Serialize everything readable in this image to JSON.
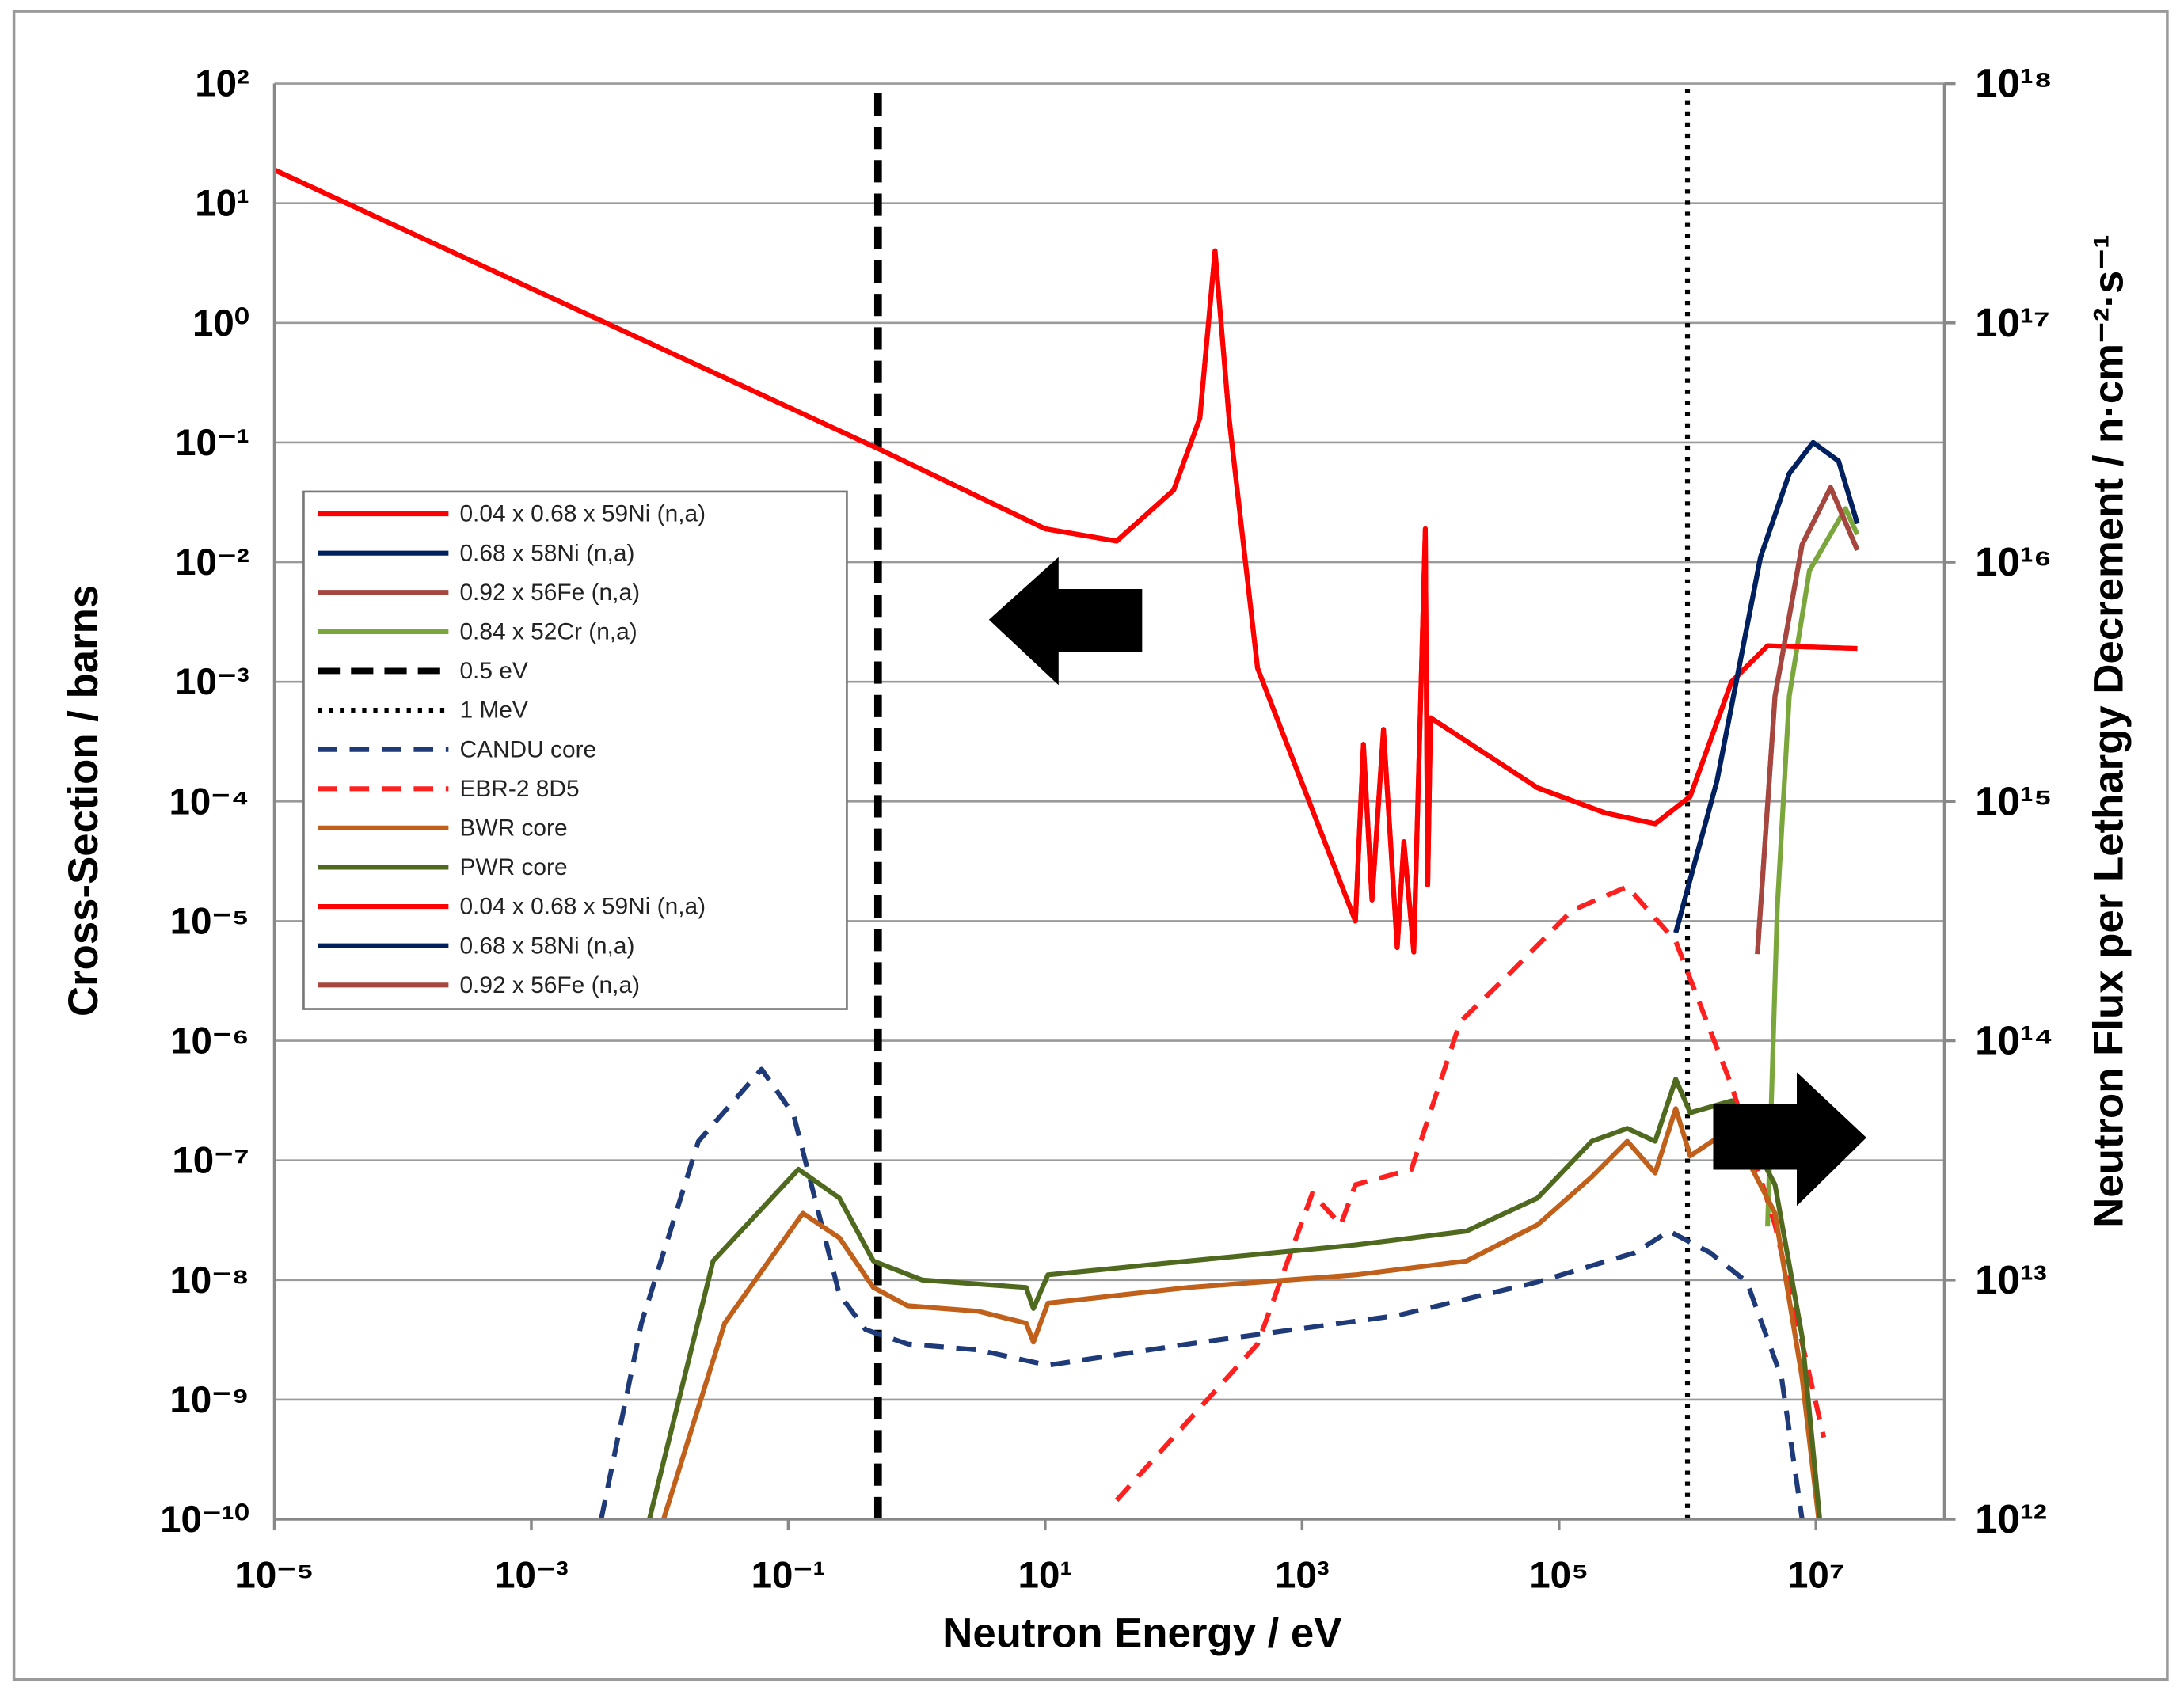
{
  "chart_data": {
    "type": "line",
    "xlabel": "Neutron Energy / eV",
    "ylabel": "Cross-Section / barns",
    "y2label": "Neutron Flux per Lethargy Decrement / n·cm⁻²·s⁻¹",
    "xscale": "log",
    "yscale": "log",
    "y2scale": "log",
    "xlim": [
      1e-05,
      100000000.0
    ],
    "ylim": [
      1e-10,
      100
    ],
    "y2lim": [
      1000000000000.0,
      1e+18
    ],
    "xticks": [
      {
        "value": 1e-05,
        "label": "10⁻⁵"
      },
      {
        "value": 0.001,
        "label": "10⁻³"
      },
      {
        "value": 0.1,
        "label": "10⁻¹"
      },
      {
        "value": 10,
        "label": "10¹"
      },
      {
        "value": 1000,
        "label": "10³"
      },
      {
        "value": 100000,
        "label": "10⁵"
      },
      {
        "value": 10000000,
        "label": "10⁷"
      }
    ],
    "yticks": [
      {
        "value": 1e-10,
        "label": "10⁻¹⁰"
      },
      {
        "value": 1e-09,
        "label": "10⁻⁹"
      },
      {
        "value": 1e-08,
        "label": "10⁻⁸"
      },
      {
        "value": 1e-07,
        "label": "10⁻⁷"
      },
      {
        "value": 1e-06,
        "label": "10⁻⁶"
      },
      {
        "value": 1e-05,
        "label": "10⁻⁵"
      },
      {
        "value": 0.0001,
        "label": "10⁻⁴"
      },
      {
        "value": 0.001,
        "label": "10⁻³"
      },
      {
        "value": 0.01,
        "label": "10⁻²"
      },
      {
        "value": 0.1,
        "label": "10⁻¹"
      },
      {
        "value": 1,
        "label": "10⁰"
      },
      {
        "value": 10,
        "label": "10¹"
      },
      {
        "value": 100,
        "label": "10²"
      }
    ],
    "y2ticks": [
      {
        "value": 1000000000000.0,
        "label": "10¹²"
      },
      {
        "value": 10000000000000.0,
        "label": "10¹³"
      },
      {
        "value": 100000000000000.0,
        "label": "10¹⁴"
      },
      {
        "value": 1000000000000000.0,
        "label": "10¹⁵"
      },
      {
        "value": 1e+16,
        "label": "10¹⁶"
      },
      {
        "value": 1e+17,
        "label": "10¹⁷"
      },
      {
        "value": 1e+18,
        "label": "10¹⁸"
      }
    ],
    "grid": true,
    "legend": "center-left",
    "series": [
      {
        "name": "0.04 x 0.68 x 59Ni (n,a)",
        "color": "#ff0000",
        "dash": "solid",
        "x": [
          1e-05,
          0.5,
          10,
          36,
          100,
          160,
          210,
          270,
          450,
          2600,
          3000,
          3500,
          4300,
          5500,
          6200,
          7400,
          9100,
          9500,
          10000,
          68000,
          230000,
          560000,
          1050000,
          2200000,
          4200000,
          21000000
        ],
        "values": [
          19,
          0.089,
          0.019,
          0.015,
          0.04,
          0.16,
          4.0,
          0.16,
          0.0013,
          1e-05,
          0.0003,
          1.5e-05,
          0.0004,
          6e-06,
          4.6e-05,
          5.5e-06,
          0.019,
          2e-05,
          0.0005,
          0.00013,
          8e-05,
          6.5e-05,
          0.00011,
          0.001,
          0.002,
          0.0019
        ]
      },
      {
        "name": "0.68 x 58Ni (n,a)",
        "color": "#002060",
        "dash": "solid",
        "x": [
          810000,
          1700000,
          3700000,
          6200000,
          9500000,
          15000000,
          21000000
        ],
        "values": [
          8e-06,
          0.00015,
          0.011,
          0.055,
          0.1,
          0.07,
          0.021
        ]
      },
      {
        "name": "0.92 x 56Fe (n,a)",
        "color": "#a5463f",
        "dash": "solid",
        "x": [
          3500000,
          4800000,
          7800000,
          13000000,
          21000000
        ],
        "values": [
          5.3e-06,
          0.00076,
          0.014,
          0.042,
          0.0126
        ]
      },
      {
        "name": "0.84 x 52Cr (n,a)",
        "color": "#7aa63c",
        "dash": "solid",
        "x": [
          4200000,
          5000000,
          6200000,
          8900000,
          17000000,
          21000000
        ],
        "values": [
          2.8e-08,
          1.3e-05,
          0.00076,
          0.0085,
          0.028,
          0.017
        ]
      },
      {
        "name": "0.5 eV",
        "color": "#000000",
        "dash": "dashed",
        "x": [
          0.5,
          0.5
        ],
        "values": [
          1e-10,
          100
        ]
      },
      {
        "name": "1 MeV",
        "color": "#000000",
        "dash": "dotted",
        "x": [
          1000000,
          1000000
        ],
        "values": [
          1e-10,
          100
        ]
      },
      {
        "name": "CANDU core",
        "color": "#1f3a78",
        "dash": "dashed",
        "axis": "y2",
        "x": [
          0.0035,
          0.0072,
          0.02,
          0.062,
          0.11,
          0.25,
          0.4,
          0.85,
          3,
          10.5,
          130,
          5500,
          68000,
          390000,
          720000,
          1500000,
          2900000,
          5400000,
          7800000
        ],
        "values": [
          1000000000000.0,
          6600000000000.0,
          38000000000000.0,
          76000000000000.0,
          49000000000000.0,
          8700000000000.0,
          6200000000000.0,
          5400000000000.0,
          5100000000000.0,
          4400000000000.0,
          5400000000000.0,
          7100000000000.0,
          9800000000000.0,
          13000000000000.0,
          16000000000000.0,
          13000000000000.0,
          9800000000000.0,
          3900000000000.0,
          1000000000000.0
        ]
      },
      {
        "name": "EBR-2 8D5",
        "color": "#ff2020",
        "dash": "dashed",
        "axis": "y2",
        "x": [
          36,
          450,
          1200,
          2000,
          2600,
          7100,
          17000,
          41000,
          126000,
          340000,
          810000,
          2200000,
          4800000,
          11500000
        ],
        "values": [
          1200000000000.0,
          5400000000000.0,
          23000000000000.0,
          17000000000000.0,
          25000000000000.0,
          29000000000000.0,
          120000000000000.0,
          190000000000000.0,
          350000000000000.0,
          440000000000000.0,
          260000000000000.0,
          65000000000000.0,
          17000000000000.0,
          2200000000000.0
        ]
      },
      {
        "name": "BWR core",
        "color": "#c0601a",
        "dash": "solid",
        "axis": "y2",
        "x": [
          0.0107,
          0.032,
          0.13,
          0.25,
          0.46,
          0.85,
          3,
          7.1,
          8.1,
          10.5,
          130,
          2600,
          19000,
          68000,
          180000,
          340000,
          560000,
          810000,
          1050000,
          2200000,
          4800000,
          7800000,
          10500000
        ],
        "values": [
          1000000000000.0,
          6600000000000.0,
          19000000000000.0,
          15000000000000.0,
          9300000000000.0,
          7800000000000.0,
          7400000000000.0,
          6600000000000.0,
          5500000000000.0,
          8000000000000.0,
          9300000000000.0,
          10500000000000.0,
          12000000000000.0,
          17000000000000.0,
          27000000000000.0,
          38000000000000.0,
          28000000000000.0,
          52000000000000.0,
          33000000000000.0,
          43000000000000.0,
          19000000000000.0,
          3900000000000.0,
          1000000000000.0
        ]
      },
      {
        "name": "PWR core",
        "color": "#4f6a1e",
        "dash": "solid",
        "axis": "y2",
        "x": [
          0.0083,
          0.026,
          0.12,
          0.25,
          0.46,
          1.1,
          7.1,
          8.1,
          10.5,
          130,
          2600,
          19000,
          68000,
          180000,
          340000,
          560000,
          810000,
          1050000,
          2200000,
          4800000,
          7800000,
          10700000
        ],
        "values": [
          1000000000000.0,
          12000000000000.0,
          29000000000000.0,
          22000000000000.0,
          12000000000000.0,
          10000000000000.0,
          9300000000000.0,
          7600000000000.0,
          10500000000000.0,
          12000000000000.0,
          14000000000000.0,
          16000000000000.0,
          22000000000000.0,
          38000000000000.0,
          43000000000000.0,
          38000000000000.0,
          69000000000000.0,
          50000000000000.0,
          56000000000000.0,
          25000000000000.0,
          5800000000000.0,
          1000000000000.0
        ]
      },
      {
        "name": "0.04 x 0.68 x 59Ni (n,a)",
        "color": "#ff0000",
        "dash": "solid",
        "x": [
          1e-05,
          0.5,
          10,
          36,
          100,
          160,
          210,
          270,
          450,
          2600,
          3000,
          3500,
          4300,
          5500,
          6200,
          7400,
          9100,
          9500,
          10000,
          68000,
          230000,
          560000,
          1050000,
          2200000,
          4200000,
          21000000
        ],
        "values": [
          19,
          0.089,
          0.019,
          0.015,
          0.04,
          0.16,
          4.0,
          0.16,
          0.0013,
          1e-05,
          0.0003,
          1.5e-05,
          0.0004,
          6e-06,
          4.6e-05,
          5.5e-06,
          0.019,
          2e-05,
          0.0005,
          0.00013,
          8e-05,
          6.5e-05,
          0.00011,
          0.001,
          0.002,
          0.0019
        ]
      },
      {
        "name": "0.68 x 58Ni (n,a)",
        "color": "#002060",
        "dash": "solid",
        "x": [
          810000,
          1700000,
          3700000,
          6200000,
          9500000,
          15000000,
          21000000
        ],
        "values": [
          8e-06,
          0.00015,
          0.011,
          0.055,
          0.1,
          0.07,
          0.021
        ]
      },
      {
        "name": "0.92 x 56Fe (n,a)",
        "color": "#a5463f",
        "dash": "solid",
        "x": [
          3500000,
          4800000,
          7800000,
          13000000,
          21000000
        ],
        "values": [
          5.3e-06,
          0.00076,
          0.014,
          0.042,
          0.0126
        ]
      }
    ]
  }
}
